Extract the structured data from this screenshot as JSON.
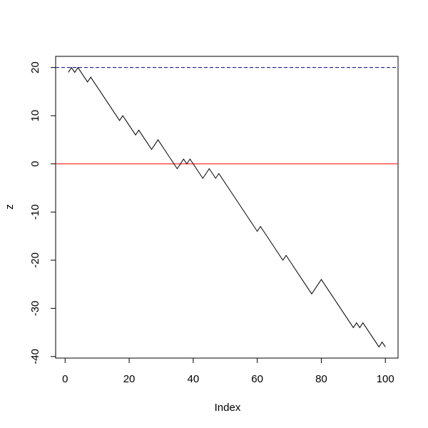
{
  "chart_data": {
    "type": "line",
    "xlabel": "Index",
    "ylabel": "z",
    "x": [
      1,
      2,
      3,
      4,
      5,
      6,
      7,
      8,
      9,
      10,
      11,
      12,
      13,
      14,
      15,
      16,
      17,
      18,
      19,
      20,
      21,
      22,
      23,
      24,
      25,
      26,
      27,
      28,
      29,
      30,
      31,
      32,
      33,
      34,
      35,
      36,
      37,
      38,
      39,
      40,
      41,
      42,
      43,
      44,
      45,
      46,
      47,
      48,
      49,
      50,
      51,
      52,
      53,
      54,
      55,
      56,
      57,
      58,
      59,
      60,
      61,
      62,
      63,
      64,
      65,
      66,
      67,
      68,
      69,
      70,
      71,
      72,
      73,
      74,
      75,
      76,
      77,
      78,
      79,
      80,
      81,
      82,
      83,
      84,
      85,
      86,
      87,
      88,
      89,
      90,
      91,
      92,
      93,
      94,
      95,
      96,
      97,
      98,
      99,
      100
    ],
    "series": [
      {
        "color": "#000000",
        "values": [
          19,
          20,
          19,
          20,
          19,
          18,
          17,
          18,
          17,
          16,
          15,
          14,
          13,
          12,
          11,
          10,
          9,
          10,
          9,
          8,
          7,
          6,
          7,
          6,
          5,
          4,
          3,
          4,
          5,
          4,
          3,
          2,
          1,
          0,
          -1,
          0,
          1,
          0,
          1,
          0,
          -1,
          -2,
          -3,
          -2,
          -1,
          -2,
          -3,
          -2,
          -3,
          -4,
          -5,
          -6,
          -7,
          -8,
          -9,
          -10,
          -11,
          -12,
          -13,
          -14,
          -13,
          -14,
          -15,
          -16,
          -17,
          -18,
          -19,
          -20,
          -19,
          -20,
          -21,
          -22,
          -23,
          -24,
          -25,
          -26,
          -27,
          -26,
          -25,
          -24,
          -25,
          -26,
          -27,
          -28,
          -29,
          -30,
          -31,
          -32,
          -33,
          -34,
          -33,
          -34,
          -33,
          -34,
          -35,
          -36,
          -37,
          -38,
          -37,
          -38
        ]
      }
    ],
    "hlines": [
      {
        "value": 20,
        "color": "#00008b",
        "style": "dashed"
      },
      {
        "value": 0,
        "color": "#ff0000",
        "style": "solid"
      }
    ],
    "xlim": [
      -2.96,
      103.96
    ],
    "ylim": [
      -40.32,
      22.32
    ],
    "xticks": [
      0,
      20,
      40,
      60,
      80,
      100
    ],
    "yticks": [
      -40,
      -30,
      -20,
      -10,
      0,
      10,
      20
    ]
  }
}
